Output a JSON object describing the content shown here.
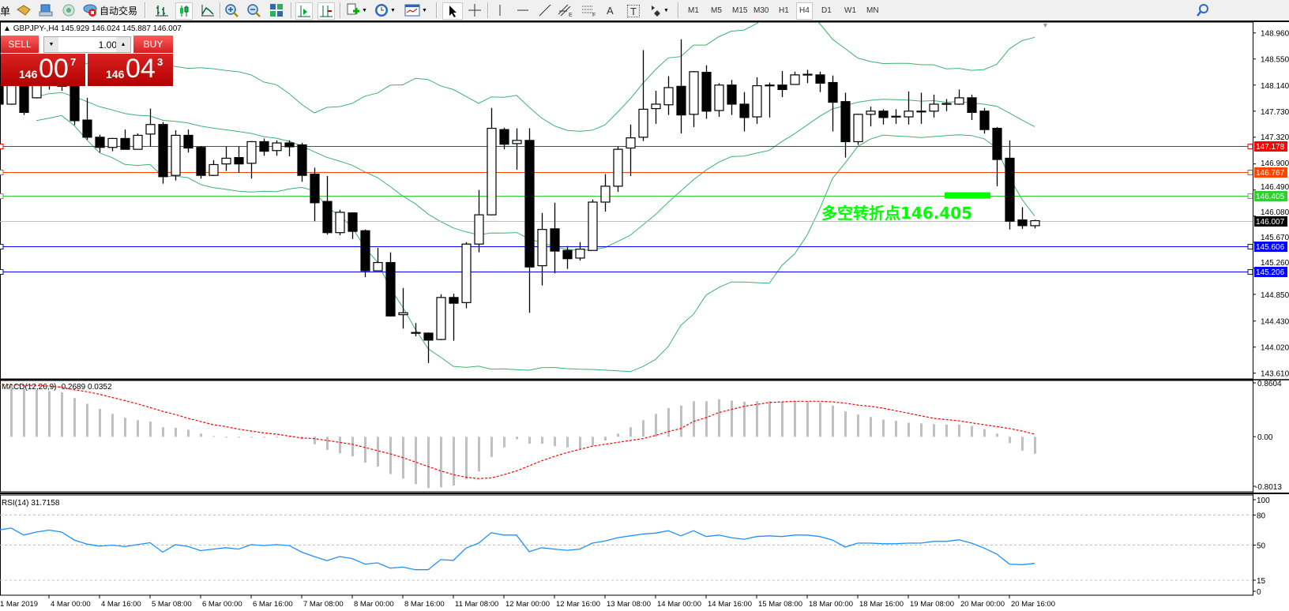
{
  "toolbar": {
    "new_order_label": "单",
    "auto_trading_label": "自动交易",
    "icons": [
      "folder-icon",
      "terminal-icon",
      "signal-icon",
      "auto-trading-icon",
      "bar-chart-icon",
      "candlestick-icon",
      "line-chart-icon",
      "zoom-in-icon",
      "zoom-out-icon",
      "tile-windows-icon",
      "chart-shift-icon",
      "autoscroll-icon",
      "indicators-icon",
      "periods-icon",
      "templates-icon",
      "cursor-icon",
      "crosshair-icon",
      "vertical-line-icon",
      "horizontal-line-icon",
      "trendline-icon",
      "equidistant-channel-icon",
      "fibonacci-icon",
      "text-icon",
      "text-label-icon",
      "arrows-icon",
      "search-icon"
    ],
    "text_tool_label": "A",
    "label_tool_label": "T",
    "timeframes": [
      "M1",
      "M5",
      "M15",
      "M30",
      "H1",
      "H4",
      "D1",
      "W1",
      "MN"
    ],
    "active_timeframe": "H4"
  },
  "header": {
    "symbol": "GBPJPY-,H4",
    "ohlc": "145.929 146.024 145.887 146.007"
  },
  "trade_panel": {
    "sell_label": "SELL",
    "buy_label": "BUY",
    "lot": "1.00",
    "sell_price": {
      "prefix": "146",
      "main": "00",
      "sup": "7"
    },
    "buy_price": {
      "prefix": "146",
      "main": "04",
      "sup": "3"
    }
  },
  "annotation": {
    "text": "多空转折点146.405",
    "price": 146.405,
    "color": "#00ff00"
  },
  "chart_data": [
    {
      "type": "candlestick",
      "symbol": "GBPJPY-",
      "timeframe": "H4",
      "ylim": [
        143.52,
        149.13
      ],
      "y_ticks": [
        "148.960",
        "148.550",
        "148.140",
        "147.730",
        "147.320",
        "146.900",
        "146.490",
        "146.080",
        "145.670",
        "145.260",
        "144.850",
        "144.430",
        "144.020",
        "143.610"
      ],
      "ohlc": [
        [
          148.18,
          148.24,
          147.8,
          147.84
        ],
        [
          147.84,
          148.24,
          147.83,
          148.14
        ],
        [
          148.18,
          148.24,
          147.67,
          147.71
        ],
        [
          147.94,
          148.24,
          147.93,
          148.14
        ],
        [
          148.14,
          148.3,
          148.07,
          148.19
        ],
        [
          148.17,
          148.26,
          148.05,
          148.12
        ],
        [
          148.12,
          148.19,
          147.51,
          147.58
        ],
        [
          147.59,
          147.94,
          147.28,
          147.32
        ],
        [
          147.32,
          147.36,
          147.08,
          147.16
        ],
        [
          147.16,
          147.31,
          147.1,
          147.3
        ],
        [
          147.3,
          147.44,
          147.13,
          147.13
        ],
        [
          147.13,
          147.38,
          147.13,
          147.35
        ],
        [
          147.37,
          147.77,
          147.17,
          147.52
        ],
        [
          147.52,
          147.56,
          146.59,
          146.7
        ],
        [
          146.72,
          147.43,
          146.64,
          147.35
        ],
        [
          147.35,
          147.44,
          147.08,
          147.15
        ],
        [
          147.16,
          147.18,
          146.67,
          146.72
        ],
        [
          146.72,
          146.96,
          146.71,
          146.89
        ],
        [
          146.9,
          147.17,
          146.79,
          146.99
        ],
        [
          147.0,
          147.17,
          146.76,
          146.9
        ],
        [
          146.91,
          147.26,
          146.67,
          147.25
        ],
        [
          147.25,
          147.3,
          147.03,
          147.1
        ],
        [
          147.11,
          147.27,
          147.03,
          147.23
        ],
        [
          147.23,
          147.27,
          147.02,
          147.17
        ],
        [
          147.2,
          147.23,
          146.62,
          146.72
        ],
        [
          146.74,
          146.84,
          146.0,
          146.29
        ],
        [
          146.31,
          146.71,
          145.79,
          145.82
        ],
        [
          145.82,
          146.18,
          145.78,
          146.14
        ],
        [
          146.13,
          146.14,
          145.72,
          145.84
        ],
        [
          145.85,
          145.87,
          145.12,
          145.22
        ],
        [
          145.22,
          145.58,
          145.22,
          145.35
        ],
        [
          145.35,
          145.51,
          144.5,
          144.51
        ],
        [
          144.53,
          144.95,
          144.31,
          144.56
        ],
        [
          144.24,
          144.4,
          144.19,
          144.25
        ],
        [
          144.24,
          144.25,
          143.77,
          144.13
        ],
        [
          144.14,
          144.85,
          144.13,
          144.8
        ],
        [
          144.8,
          144.86,
          144.12,
          144.71
        ],
        [
          144.72,
          145.67,
          144.63,
          145.64
        ],
        [
          145.64,
          146.49,
          145.51,
          146.1
        ],
        [
          146.1,
          147.78,
          146.09,
          147.46
        ],
        [
          147.44,
          147.47,
          147.13,
          147.21
        ],
        [
          147.22,
          147.46,
          146.81,
          147.27
        ],
        [
          147.27,
          147.46,
          144.56,
          145.28
        ],
        [
          145.3,
          146.13,
          144.99,
          145.87
        ],
        [
          145.88,
          146.29,
          145.18,
          145.53
        ],
        [
          145.54,
          145.61,
          145.25,
          145.41
        ],
        [
          145.42,
          145.67,
          145.38,
          145.56
        ],
        [
          145.54,
          146.34,
          145.54,
          146.3
        ],
        [
          146.3,
          146.74,
          146.15,
          146.55
        ],
        [
          146.55,
          147.17,
          146.46,
          147.13
        ],
        [
          147.15,
          147.52,
          146.71,
          147.31
        ],
        [
          147.32,
          148.69,
          147.26,
          147.76
        ],
        [
          147.77,
          148.05,
          147.53,
          147.84
        ],
        [
          147.83,
          148.28,
          147.67,
          148.1
        ],
        [
          148.12,
          148.86,
          147.38,
          147.67
        ],
        [
          147.68,
          148.36,
          147.48,
          148.35
        ],
        [
          148.34,
          148.45,
          147.61,
          147.73
        ],
        [
          147.74,
          148.17,
          147.64,
          148.14
        ],
        [
          148.14,
          148.22,
          147.67,
          147.84
        ],
        [
          147.84,
          148.03,
          147.41,
          147.63
        ],
        [
          147.64,
          148.26,
          147.53,
          148.13
        ],
        [
          148.13,
          148.18,
          147.63,
          148.14
        ],
        [
          148.14,
          148.36,
          147.95,
          148.07
        ],
        [
          148.15,
          148.35,
          148.15,
          148.3
        ],
        [
          148.31,
          148.38,
          148.17,
          148.3
        ],
        [
          148.3,
          148.35,
          148.03,
          148.17
        ],
        [
          148.18,
          148.29,
          147.41,
          147.87
        ],
        [
          147.88,
          148.02,
          147.0,
          147.25
        ],
        [
          147.25,
          147.69,
          147.2,
          147.68
        ],
        [
          147.68,
          147.8,
          147.49,
          147.73
        ],
        [
          147.73,
          147.76,
          147.52,
          147.63
        ],
        [
          147.64,
          147.76,
          147.53,
          147.65
        ],
        [
          147.64,
          148.04,
          147.52,
          147.73
        ],
        [
          147.72,
          148.02,
          147.53,
          147.73
        ],
        [
          147.73,
          147.99,
          147.63,
          147.84
        ],
        [
          147.84,
          147.92,
          147.73,
          147.85
        ],
        [
          147.84,
          148.07,
          147.83,
          147.94
        ],
        [
          147.94,
          147.99,
          147.59,
          147.71
        ],
        [
          147.73,
          147.78,
          147.38,
          147.44
        ],
        [
          147.46,
          147.48,
          146.55,
          146.97
        ],
        [
          146.99,
          147.27,
          145.87,
          146.0
        ],
        [
          146.02,
          146.22,
          145.88,
          145.93
        ],
        [
          145.929,
          146.024,
          145.887,
          146.007
        ]
      ],
      "bollinger": {
        "period": 20,
        "deviation": 2,
        "color": "#3cb371"
      },
      "horizontal_lines": [
        {
          "price": 147.178,
          "label": "147.178",
          "color": "#ff0000"
        },
        {
          "price": 146.767,
          "label": "146.767",
          "color": "#ff4500"
        },
        {
          "price": 146.405,
          "label": "146.405",
          "color": "#32cd32"
        },
        {
          "price": 146.007,
          "label": "146.007",
          "color": "#c0c0c0",
          "label_bg": "#000000",
          "bid_line": true
        },
        {
          "price": 145.606,
          "label": "145.606",
          "color": "#0000ff"
        },
        {
          "price": 145.206,
          "label": "145.206",
          "color": "#0000ff"
        }
      ],
      "time_labels": [
        {
          "bar": 0,
          "label": "1 Mar 2019"
        },
        {
          "bar": 4,
          "label": "4 Mar 00:00"
        },
        {
          "bar": 8,
          "label": "4 Mar 16:00"
        },
        {
          "bar": 12,
          "label": "5 Mar 08:00"
        },
        {
          "bar": 16,
          "label": "6 Mar 00:00"
        },
        {
          "bar": 20,
          "label": "6 Mar 16:00"
        },
        {
          "bar": 24,
          "label": "7 Mar 08:00"
        },
        {
          "bar": 28,
          "label": "8 Mar 00:00"
        },
        {
          "bar": 32,
          "label": "8 Mar 16:00"
        },
        {
          "bar": 36,
          "label": "11 Mar 08:00"
        },
        {
          "bar": 40,
          "label": "12 Mar 00:00"
        },
        {
          "bar": 44,
          "label": "12 Mar 16:00"
        },
        {
          "bar": 48,
          "label": "13 Mar 08:00"
        },
        {
          "bar": 52,
          "label": "14 Mar 00:00"
        },
        {
          "bar": 56,
          "label": "14 Mar 16:00"
        },
        {
          "bar": 60,
          "label": "15 Mar 08:00"
        },
        {
          "bar": 64,
          "label": "18 Mar 00:00"
        },
        {
          "bar": 68,
          "label": "18 Mar 16:00"
        },
        {
          "bar": 72,
          "label": "19 Mar 08:00"
        },
        {
          "bar": 76,
          "label": "20 Mar 00:00"
        },
        {
          "bar": 80,
          "label": "20 Mar 16:00"
        }
      ]
    },
    {
      "type": "bar",
      "title": "MACD(12,26,9) -0.2689 0.0352",
      "ylim": [
        -0.87,
        0.9
      ],
      "y_ticks": [
        "0.8604",
        "0.00",
        "-0.8013"
      ],
      "histogram_color": "#c0c0c0",
      "signal_color": "#ff0000",
      "histogram": [
        0.83,
        0.82,
        0.75,
        0.74,
        0.72,
        0.7,
        0.61,
        0.52,
        0.44,
        0.36,
        0.3,
        0.26,
        0.24,
        0.15,
        0.14,
        0.11,
        0.05,
        0.01,
        -0.01,
        -0.01,
        -0.01,
        -0.01,
        -0.01,
        0.0,
        -0.04,
        -0.12,
        -0.21,
        -0.26,
        -0.31,
        -0.41,
        -0.47,
        -0.59,
        -0.66,
        -0.75,
        -0.81,
        -0.8,
        -0.77,
        -0.67,
        -0.55,
        -0.32,
        -0.17,
        -0.04,
        -0.11,
        -0.11,
        -0.15,
        -0.17,
        -0.19,
        -0.14,
        -0.06,
        0.05,
        0.15,
        0.26,
        0.36,
        0.45,
        0.49,
        0.56,
        0.56,
        0.59,
        0.57,
        0.55,
        0.56,
        0.56,
        0.55,
        0.56,
        0.56,
        0.54,
        0.49,
        0.4,
        0.35,
        0.31,
        0.27,
        0.25,
        0.22,
        0.21,
        0.2,
        0.19,
        0.19,
        0.17,
        0.12,
        0.05,
        -0.1,
        -0.22,
        -0.27
      ],
      "signal": [
        0.82,
        0.82,
        0.81,
        0.81,
        0.8,
        0.78,
        0.74,
        0.71,
        0.67,
        0.62,
        0.57,
        0.52,
        0.46,
        0.4,
        0.35,
        0.29,
        0.24,
        0.19,
        0.16,
        0.12,
        0.09,
        0.06,
        0.04,
        0.01,
        -0.02,
        -0.03,
        -0.06,
        -0.09,
        -0.12,
        -0.17,
        -0.22,
        -0.27,
        -0.33,
        -0.4,
        -0.47,
        -0.54,
        -0.6,
        -0.64,
        -0.66,
        -0.65,
        -0.6,
        -0.54,
        -0.46,
        -0.38,
        -0.31,
        -0.25,
        -0.2,
        -0.15,
        -0.12,
        -0.09,
        -0.06,
        -0.03,
        0.02,
        0.08,
        0.13,
        0.24,
        0.3,
        0.38,
        0.43,
        0.48,
        0.51,
        0.54,
        0.55,
        0.56,
        0.56,
        0.56,
        0.55,
        0.53,
        0.5,
        0.48,
        0.45,
        0.41,
        0.37,
        0.33,
        0.29,
        0.27,
        0.25,
        0.22,
        0.19,
        0.16,
        0.13,
        0.09,
        0.04
      ]
    },
    {
      "type": "line",
      "title": "RSI(14) 31.7158",
      "ylim": [
        0,
        100
      ],
      "y_ticks": [
        "100",
        "80",
        "50",
        "15",
        "0"
      ],
      "levels": [
        80,
        50,
        15
      ],
      "color": "#1e90ff",
      "values": [
        65,
        67,
        60,
        63,
        65,
        63,
        55,
        51,
        49,
        50,
        48.5,
        50.5,
        52.4,
        43,
        50.5,
        48.7,
        44.5,
        46,
        47.4,
        46,
        50.5,
        49.5,
        50.5,
        49.5,
        43,
        38.5,
        34.5,
        38.6,
        36.5,
        31,
        32.3,
        27,
        28,
        25.4,
        25.4,
        35.5,
        34.7,
        47,
        52,
        62.4,
        60,
        60,
        43.4,
        47.4,
        46,
        44.8,
        46,
        52,
        54,
        57.4,
        59.2,
        61,
        62,
        64.3,
        59.2,
        64.3,
        58.5,
        60,
        57.4,
        55.8,
        58.5,
        59.2,
        58.5,
        60,
        60,
        58.5,
        55,
        48,
        52,
        52,
        51.3,
        51.3,
        52,
        52,
        53.7,
        53.7,
        55.3,
        52,
        47,
        41,
        31,
        30.5,
        31.7158
      ]
    }
  ]
}
